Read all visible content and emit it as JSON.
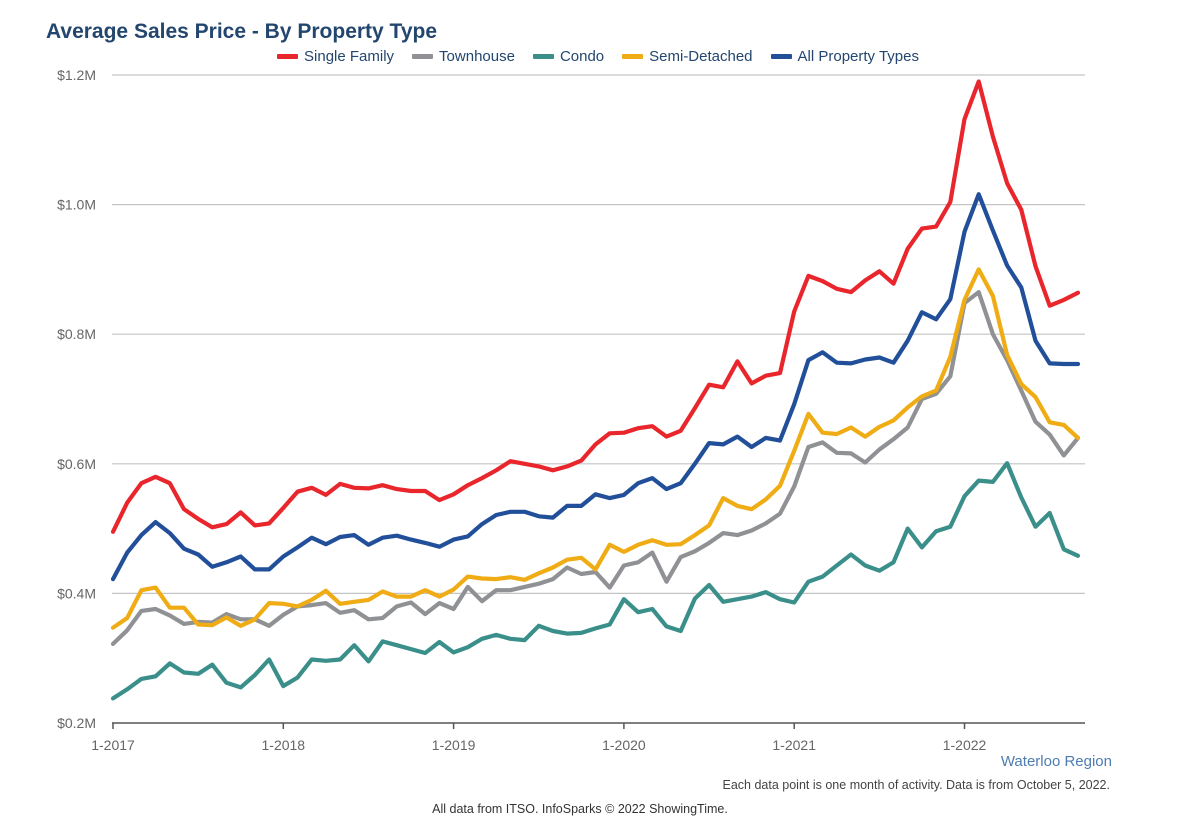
{
  "chart_data": {
    "type": "line",
    "title": "Average Sales Price - By Property Type",
    "subtitle": "",
    "xlabel": "",
    "ylabel": "",
    "ylim": [
      200000,
      1200000
    ],
    "y_ticks": [
      {
        "value": 200000,
        "label": "$0.2M"
      },
      {
        "value": 400000,
        "label": "$0.4M"
      },
      {
        "value": 600000,
        "label": "$0.6M"
      },
      {
        "value": 800000,
        "label": "$0.8M"
      },
      {
        "value": 1000000,
        "label": "$1.0M"
      },
      {
        "value": 1200000,
        "label": "$1.2M"
      }
    ],
    "x_ticks": [
      "1-2017",
      "1-2018",
      "1-2019",
      "1-2020",
      "1-2021",
      "1-2022"
    ],
    "x_start": "1-2017",
    "x_end": "9-2022",
    "grid": "horizontal",
    "legend_position": "top",
    "series": [
      {
        "name": "Single Family",
        "color": "#e8262c",
        "values": [
          495000,
          540000,
          570000,
          580000,
          570000,
          530000,
          515000,
          502000,
          507000,
          525000,
          505000,
          508000,
          532000,
          557000,
          563000,
          552000,
          569000,
          563000,
          562000,
          567000,
          561000,
          558000,
          558000,
          544000,
          553000,
          567000,
          578000,
          590000,
          604000,
          600000,
          596000,
          590000,
          596000,
          605000,
          630000,
          647000,
          648000,
          655000,
          658000,
          642000,
          651000,
          686000,
          722000,
          718000,
          758000,
          724000,
          736000,
          740000,
          835000,
          890000,
          882000,
          870000,
          865000,
          883000,
          897000,
          878000,
          932000,
          963000,
          966000,
          1004000,
          1132000,
          1190000,
          1105000,
          1033000,
          992000,
          905000,
          844000,
          853000,
          864000
        ]
      },
      {
        "name": "Townhouse",
        "color": "#8f9194",
        "values": [
          322000,
          343000,
          373000,
          376000,
          366000,
          353000,
          356000,
          355000,
          368000,
          360000,
          360000,
          350000,
          367000,
          380000,
          382000,
          385000,
          370000,
          374000,
          360000,
          362000,
          380000,
          386000,
          368000,
          385000,
          376000,
          410000,
          388000,
          405000,
          405000,
          410000,
          415000,
          422000,
          440000,
          430000,
          433000,
          409000,
          443000,
          448000,
          463000,
          418000,
          456000,
          465000,
          478000,
          493000,
          490000,
          497000,
          508000,
          523000,
          565000,
          626000,
          633000,
          617000,
          616000,
          602000,
          622000,
          638000,
          656000,
          700000,
          708000,
          735000,
          848000,
          865000,
          800000,
          760000,
          713000,
          665000,
          645000,
          613000,
          640000
        ]
      },
      {
        "name": "Condo",
        "color": "#3a8f8a",
        "values": [
          238000,
          252000,
          268000,
          272000,
          292000,
          278000,
          276000,
          290000,
          262000,
          255000,
          274000,
          298000,
          257000,
          270000,
          298000,
          296000,
          298000,
          320000,
          295000,
          326000,
          320000,
          314000,
          308000,
          325000,
          309000,
          317000,
          330000,
          336000,
          330000,
          328000,
          350000,
          342000,
          338000,
          339000,
          346000,
          352000,
          391000,
          371000,
          376000,
          349000,
          342000,
          392000,
          413000,
          387000,
          391000,
          395000,
          402000,
          391000,
          386000,
          418000,
          426000,
          443000,
          460000,
          443000,
          435000,
          448000,
          500000,
          471000,
          496000,
          503000,
          550000,
          574000,
          572000,
          601000,
          548000,
          503000,
          524000,
          468000,
          458000
        ]
      },
      {
        "name": "Semi-Detached",
        "color": "#f0ac14",
        "values": [
          347000,
          362000,
          405000,
          409000,
          378000,
          378000,
          352000,
          351000,
          363000,
          350000,
          360000,
          385000,
          384000,
          380000,
          390000,
          404000,
          384000,
          387000,
          390000,
          403000,
          395000,
          395000,
          405000,
          395000,
          406000,
          426000,
          423000,
          422000,
          425000,
          421000,
          431000,
          440000,
          452000,
          455000,
          437000,
          475000,
          464000,
          475000,
          482000,
          475000,
          476000,
          490000,
          505000,
          547000,
          535000,
          530000,
          545000,
          566000,
          620000,
          677000,
          648000,
          646000,
          656000,
          642000,
          657000,
          667000,
          687000,
          704000,
          713000,
          765000,
          853000,
          900000,
          859000,
          768000,
          723000,
          703000,
          664000,
          660000,
          640000
        ]
      },
      {
        "name": "All Property Types",
        "color": "#224f99",
        "values": [
          422000,
          463000,
          490000,
          510000,
          493000,
          469000,
          460000,
          441000,
          448000,
          457000,
          437000,
          437000,
          457000,
          471000,
          486000,
          476000,
          487000,
          490000,
          475000,
          486000,
          489000,
          483000,
          478000,
          472000,
          483000,
          488000,
          507000,
          521000,
          526000,
          526000,
          519000,
          517000,
          535000,
          535000,
          553000,
          547000,
          552000,
          570000,
          578000,
          561000,
          570000,
          600000,
          632000,
          630000,
          642000,
          626000,
          640000,
          636000,
          692000,
          760000,
          772000,
          756000,
          755000,
          761000,
          764000,
          756000,
          790000,
          834000,
          823000,
          854000,
          958000,
          1016000,
          960000,
          906000,
          872000,
          790000,
          755000,
          754000,
          754000
        ]
      }
    ]
  },
  "footer": {
    "region": "Waterloo Region",
    "note": "Each data point is one month of activity. Data is from October 5, 2022.",
    "source": "All data from ITSO. InfoSparks © 2022 ShowingTime."
  }
}
